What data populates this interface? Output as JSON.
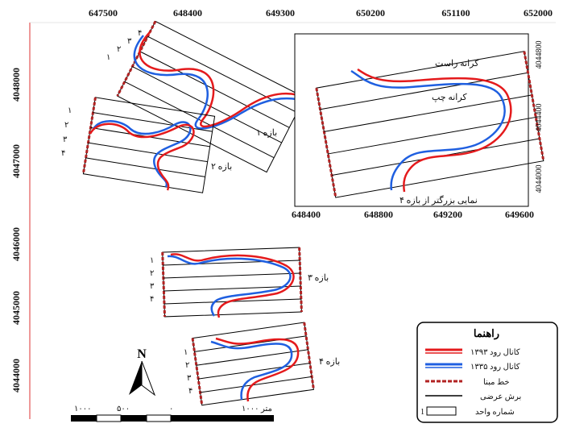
{
  "map": {
    "top_ticks": [
      "647500",
      "648400",
      "649300",
      "650200",
      "651100",
      "652000"
    ],
    "left_ticks": [
      "4048000",
      "4047000",
      "4046000",
      "4045000",
      "4044000"
    ],
    "inset_bottom_ticks": [
      "648400",
      "648800",
      "649200",
      "649600"
    ],
    "inset_right_ticks": [
      "4044800",
      "4044400",
      "4044000"
    ],
    "reach_labels": {
      "r1": "بازه ۱",
      "r2": "بازه ۲",
      "r3": "بازه ۳",
      "r4": "بازه ۴"
    },
    "inset": {
      "right_bank": "کرانه راست",
      "left_bank": "کرانه چپ",
      "caption": "نمایی بزرگتر از بازه ۴"
    },
    "unit_numbers": {
      "r1": [
        "۱",
        "۲",
        "۳",
        "۴"
      ],
      "r2": [
        "۱",
        "۲",
        "۳",
        "۴"
      ],
      "r3": [
        "۱",
        "۲",
        "۳",
        "۴"
      ],
      "r4": [
        "۱",
        "۲",
        "۳",
        "۴"
      ]
    },
    "north": "N",
    "scale": {
      "labels": [
        "۱۰۰۰",
        "۵۰۰",
        "۰",
        "۱۰۰۰ متر"
      ]
    },
    "legend": {
      "title": "راهنما",
      "items": [
        {
          "label": "کانال رود ۱۳۹۳",
          "color": "#e41a1c"
        },
        {
          "label": "کانال رود ۱۳۳۵",
          "color": "#1f5fe0"
        },
        {
          "label": "خط مبنا",
          "color": "#b22222"
        },
        {
          "label": "برش عرضی",
          "color": "#000000"
        },
        {
          "label": "شماره واحد",
          "color": "#000000"
        }
      ]
    },
    "colors": {
      "channel_1393": "#e41a1c",
      "channel_1335": "#1f5fe0",
      "baseline": "#b22222",
      "frame_line": "#d33"
    }
  }
}
